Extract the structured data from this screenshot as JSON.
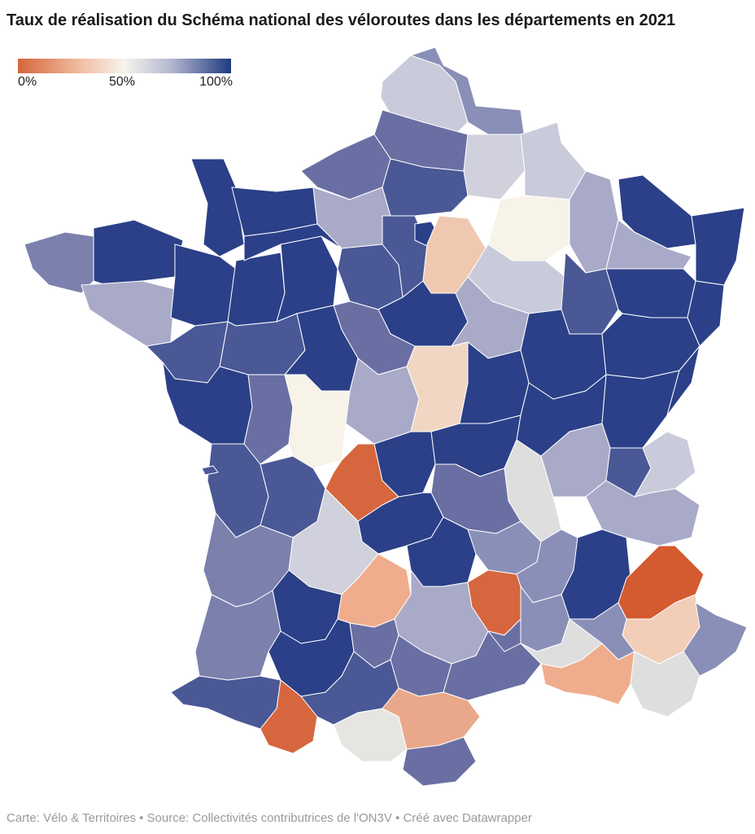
{
  "title": "Taux de réalisation du Schéma national des véloroutes dans les départements en 2021",
  "legend": {
    "min_label": "0%",
    "mid_label": "50%",
    "max_label": "100%",
    "color_low": "#d6663d",
    "color_mid": "#f7f4ec",
    "color_high": "#1f3a80"
  },
  "footer": "Carte: Vélo & Territoires • Source: Collectivités contributrices de l'ON3V • Créé avec Datawrapper"
}
